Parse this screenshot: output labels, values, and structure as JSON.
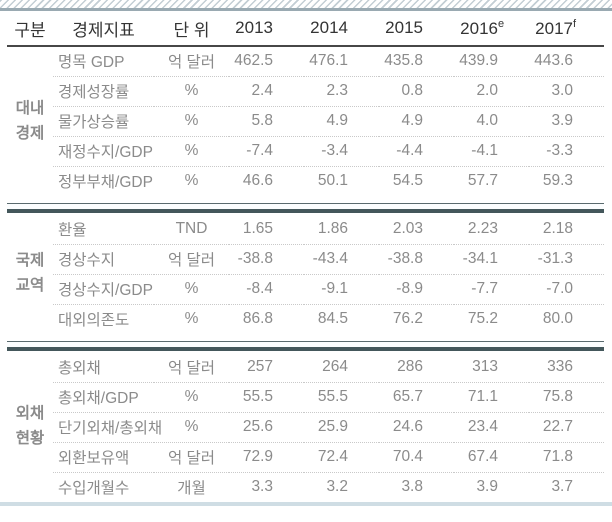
{
  "colors": {
    "group_rule_thick": "#44575b",
    "group_rule_thin": "#5a6a6e",
    "header_rule": "#474747",
    "row_rule": "#c9c9c9",
    "hatch_stripe": "#c3ced4",
    "hatch_rule": "#9aaab2",
    "bottom_band": "#cfdde4",
    "header_text": "#343434",
    "group_label_text": "#4a4a4a",
    "body_text": "#8b8b8b"
  },
  "table": {
    "headers": {
      "category": "구분",
      "indicator": "경제지표",
      "unit": "단 위",
      "years": [
        {
          "label": "2013",
          "sup": ""
        },
        {
          "label": "2014",
          "sup": ""
        },
        {
          "label": "2015",
          "sup": ""
        },
        {
          "label": "2016",
          "sup": "e"
        },
        {
          "label": "2017",
          "sup": "f"
        }
      ]
    },
    "groups": [
      {
        "name": "대내경제",
        "name_lines": [
          "대내",
          "경제"
        ],
        "rows": [
          {
            "indicator": "명목 GDP",
            "unit": "억 달러",
            "values": [
              "462.5",
              "476.1",
              "435.8",
              "439.9",
              "443.6"
            ]
          },
          {
            "indicator": "경제성장률",
            "unit": "%",
            "values": [
              "2.4",
              "2.3",
              "0.8",
              "2.0",
              "3.0"
            ]
          },
          {
            "indicator": "물가상승률",
            "unit": "%",
            "values": [
              "5.8",
              "4.9",
              "4.9",
              "4.0",
              "3.9"
            ]
          },
          {
            "indicator": "재정수지/GDP",
            "unit": "%",
            "values": [
              "-7.4",
              "-3.4",
              "-4.4",
              "-4.1",
              "-3.3"
            ]
          },
          {
            "indicator": "정부부채/GDP",
            "unit": "%",
            "values": [
              "46.6",
              "50.1",
              "54.5",
              "57.7",
              "59.3"
            ]
          }
        ]
      },
      {
        "name": "국제교역",
        "name_lines": [
          "국제",
          "교역"
        ],
        "rows": [
          {
            "indicator": "환율",
            "unit": "TND",
            "values": [
              "1.65",
              "1.86",
              "2.03",
              "2.23",
              "2.18"
            ]
          },
          {
            "indicator": "경상수지",
            "unit": "억 달러",
            "values": [
              "-38.8",
              "-43.4",
              "-38.8",
              "-34.1",
              "-31.3"
            ]
          },
          {
            "indicator": "경상수지/GDP",
            "unit": "%",
            "values": [
              "-8.4",
              "-9.1",
              "-8.9",
              "-7.7",
              "-7.0"
            ]
          },
          {
            "indicator": "대외의존도",
            "unit": "%",
            "values": [
              "86.8",
              "84.5",
              "76.2",
              "75.2",
              "80.0"
            ]
          }
        ]
      },
      {
        "name": "외채현황",
        "name_lines": [
          "외채",
          "현황"
        ],
        "rows": [
          {
            "indicator": "총외채",
            "unit": "억 달러",
            "values": [
              "257",
              "264",
              "286",
              "313",
              "336"
            ]
          },
          {
            "indicator": "총외채/GDP",
            "unit": "%",
            "values": [
              "55.5",
              "55.5",
              "65.7",
              "71.1",
              "75.8"
            ]
          },
          {
            "indicator": "단기외채/총외채",
            "unit": "%",
            "values": [
              "25.6",
              "25.9",
              "24.6",
              "23.4",
              "22.7"
            ]
          },
          {
            "indicator": "외환보유액",
            "unit": "억 달러",
            "values": [
              "72.9",
              "72.4",
              "70.4",
              "67.4",
              "71.8"
            ]
          },
          {
            "indicator": "수입개월수",
            "unit": "개월",
            "values": [
              "3.3",
              "3.2",
              "3.8",
              "3.9",
              "3.7"
            ]
          }
        ]
      }
    ]
  }
}
